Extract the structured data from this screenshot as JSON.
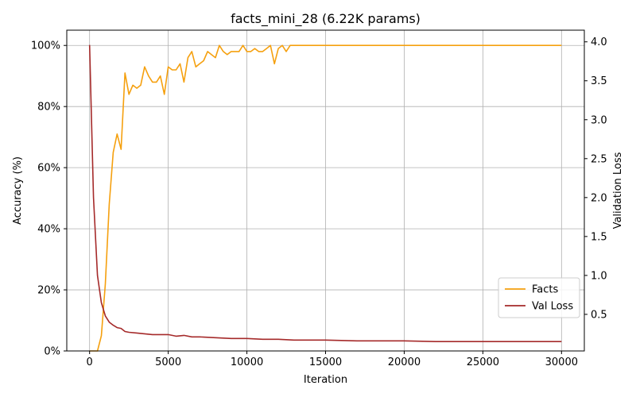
{
  "chart_data": {
    "type": "line",
    "title": "facts_mini_28 (6.22K params)",
    "xlabel": "Iteration",
    "ylabel": "Accuracy (%)",
    "y2label": "Validation Loss",
    "xlim": [
      -1450,
      31450
    ],
    "ylim": [
      0,
      105
    ],
    "y2lim": [
      0.03,
      4.15
    ],
    "xticks": [
      0,
      5000,
      10000,
      15000,
      20000,
      25000,
      30000
    ],
    "xtick_labels": [
      "0",
      "5000",
      "10000",
      "15000",
      "20000",
      "25000",
      "30000"
    ],
    "yticks": [
      0,
      20,
      40,
      60,
      80,
      100
    ],
    "ytick_labels": [
      "0%",
      "20%",
      "40%",
      "60%",
      "80%",
      "100%"
    ],
    "y2ticks": [
      0.5,
      1.0,
      1.5,
      2.0,
      2.5,
      3.0,
      3.5,
      4.0
    ],
    "y2tick_labels": [
      "0.5",
      "1.0",
      "1.5",
      "2.0",
      "2.5",
      "3.0",
      "3.5",
      "4.0"
    ],
    "grid": true,
    "legend_position": "lower-right",
    "series": [
      {
        "name": "Facts",
        "axis": "left",
        "color": "#f5a00f",
        "x": [
          0,
          250,
          500,
          750,
          1000,
          1250,
          1500,
          1750,
          2000,
          2250,
          2500,
          2750,
          3000,
          3250,
          3500,
          3750,
          4000,
          4250,
          4500,
          4750,
          5000,
          5250,
          5500,
          5750,
          6000,
          6250,
          6500,
          6750,
          7000,
          7250,
          7500,
          7750,
          8000,
          8250,
          8500,
          8750,
          9000,
          9250,
          9500,
          9750,
          10000,
          10250,
          10500,
          10750,
          11000,
          11250,
          11500,
          11750,
          12000,
          12250,
          12500,
          12750,
          13000,
          15000,
          20000,
          25000,
          30000
        ],
        "y": [
          0,
          0,
          0,
          5,
          22,
          48,
          65,
          71,
          66,
          91,
          84,
          87,
          86,
          87,
          93,
          90,
          88,
          88,
          90,
          84,
          93,
          92,
          92,
          94,
          88,
          96,
          98,
          93,
          94,
          95,
          98,
          97,
          96,
          100,
          98,
          97,
          98,
          98,
          98,
          100,
          98,
          98,
          99,
          98,
          98,
          99,
          100,
          94,
          99,
          100,
          98,
          100,
          100,
          100,
          100,
          100,
          100
        ]
      },
      {
        "name": "Val Loss",
        "axis": "right",
        "color": "#a52a2a",
        "x": [
          0,
          250,
          500,
          750,
          1000,
          1250,
          1500,
          1750,
          2000,
          2250,
          2500,
          3000,
          3500,
          4000,
          4500,
          5000,
          5500,
          6000,
          6500,
          7000,
          8000,
          9000,
          10000,
          11000,
          12000,
          13000,
          14000,
          15000,
          17000,
          20000,
          22000,
          25000,
          28000,
          30000
        ],
        "y": [
          3.96,
          2.0,
          1.0,
          0.65,
          0.48,
          0.4,
          0.36,
          0.33,
          0.32,
          0.28,
          0.27,
          0.26,
          0.25,
          0.24,
          0.24,
          0.24,
          0.22,
          0.23,
          0.21,
          0.21,
          0.2,
          0.19,
          0.19,
          0.18,
          0.18,
          0.17,
          0.17,
          0.17,
          0.16,
          0.16,
          0.15,
          0.15,
          0.15,
          0.15
        ]
      }
    ]
  }
}
